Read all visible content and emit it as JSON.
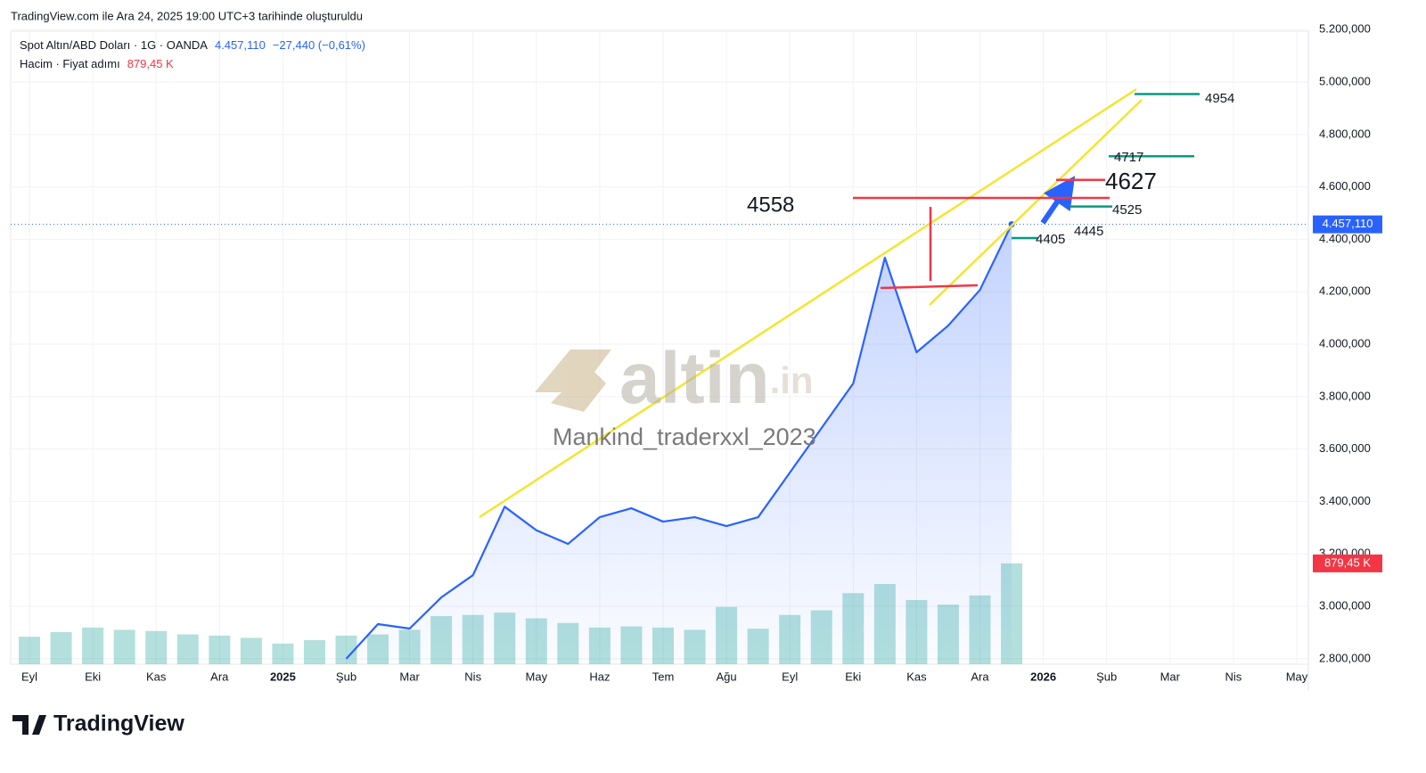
{
  "header": {
    "created": "TradingView.com ile Ara 24, 2025 19:00 UTC+3 tarihinde oluşturuldu",
    "symbol": "Spot Altın/ABD Doları · 1G · OANDA",
    "price": "4.457,110",
    "change": "−27,440 (−0,61%)",
    "volume_title": "Hacim · Fiyat adımı",
    "volume_value": "879,45 K"
  },
  "watermark": {
    "brand": "altin",
    "suffix": ".in",
    "author": "Mankind_traderxxl_2023"
  },
  "footer": {
    "logo": "TradingView"
  },
  "chart_data": {
    "type": "line",
    "categories": [
      "Eyl",
      null,
      "Eki",
      null,
      "Kas",
      null,
      "Ara",
      null,
      "2025",
      null,
      "Şub",
      null,
      "Mar",
      null,
      "Nis",
      null,
      "May",
      null,
      "Haz",
      null,
      "Tem",
      null,
      "Ağu",
      null,
      "Eyl",
      null,
      "Eki",
      null,
      "Kas",
      null,
      "Ara",
      null,
      "2026",
      null,
      "Şub",
      null,
      "Mar",
      null,
      "Nis",
      null,
      "May",
      null
    ],
    "series": [
      {
        "name": "Spot Altın/ABD Doları",
        "color": "#2962ff",
        "values": [
          null,
          null,
          null,
          null,
          null,
          null,
          null,
          null,
          null,
          null,
          2800,
          2932,
          2915,
          3034,
          3119,
          3380,
          3290,
          3238,
          3340,
          3374,
          3323,
          3340,
          3306,
          3340,
          3510,
          3680,
          3850,
          4330,
          3969,
          4071,
          4207,
          4457.11,
          null,
          null,
          null,
          null,
          null,
          null,
          null,
          null,
          null,
          null
        ]
      },
      {
        "name": "Hacim",
        "color": "#26a69a",
        "axis": "y2",
        "values": [
          240,
          280,
          320,
          300,
          290,
          260,
          250,
          230,
          180,
          210,
          250,
          260,
          300,
          420,
          430,
          450,
          400,
          360,
          320,
          330,
          320,
          300,
          500,
          310,
          430,
          470,
          620,
          700,
          560,
          520,
          600,
          879.45,
          null,
          null,
          null,
          null,
          null,
          null,
          null,
          null,
          null,
          null
        ]
      }
    ],
    "ylim": [
      2779,
      5194
    ],
    "yticks": [
      {
        "value": 2800,
        "label": "2.800,000"
      },
      {
        "value": 3000,
        "label": "3.000,000"
      },
      {
        "value": 3200,
        "label": "3.200,000"
      },
      {
        "value": 3400,
        "label": "3.400,000"
      },
      {
        "value": 3600,
        "label": "3.600,000"
      },
      {
        "value": 3800,
        "label": "3.800,000"
      },
      {
        "value": 4000,
        "label": "4.000,000"
      },
      {
        "value": 4200,
        "label": "4.200,000"
      },
      {
        "value": 4400,
        "label": "4.400,000"
      },
      {
        "value": 4600,
        "label": "4.600,000"
      },
      {
        "value": 4800,
        "label": "4.800,000"
      },
      {
        "value": 5000,
        "label": "5.000,000"
      },
      {
        "value": 5200,
        "label": "5.200,000"
      }
    ],
    "grid": true,
    "annotations": [
      {
        "value": 4954,
        "color": "#089981"
      },
      {
        "value": 4717,
        "color": "#089981"
      },
      {
        "value": 4627,
        "color": "#f23645"
      },
      {
        "value": 4558,
        "color": "#f23645"
      },
      {
        "value": 4525,
        "color": "#089981"
      },
      {
        "value": 4445,
        "color": "#089981"
      },
      {
        "value": 4405,
        "color": "#089981"
      }
    ]
  }
}
